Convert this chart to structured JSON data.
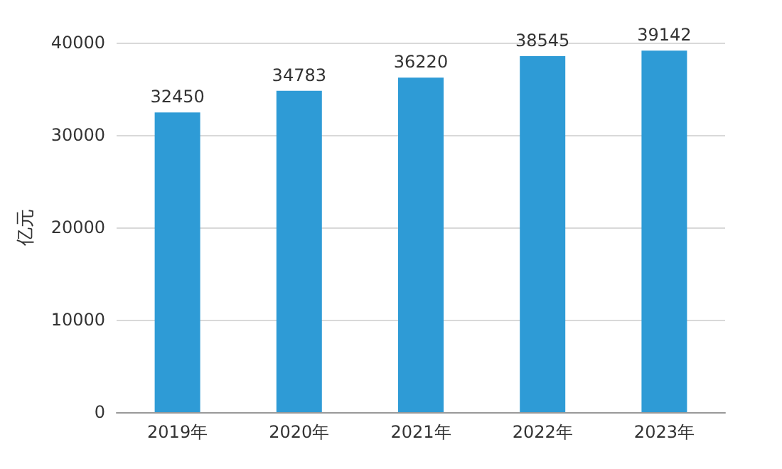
{
  "chart_data": {
    "type": "bar",
    "ylabel": "亿元",
    "categories": [
      "2019年",
      "2020年",
      "2021年",
      "2022年",
      "2023年"
    ],
    "values": [
      32450,
      34783,
      36220,
      38545,
      39142
    ],
    "color": "#2e9bd6",
    "ylim": [
      0,
      40000
    ],
    "yticks": [
      0,
      10000,
      20000,
      30000,
      40000
    ],
    "grid": "y",
    "data_labels": true
  }
}
